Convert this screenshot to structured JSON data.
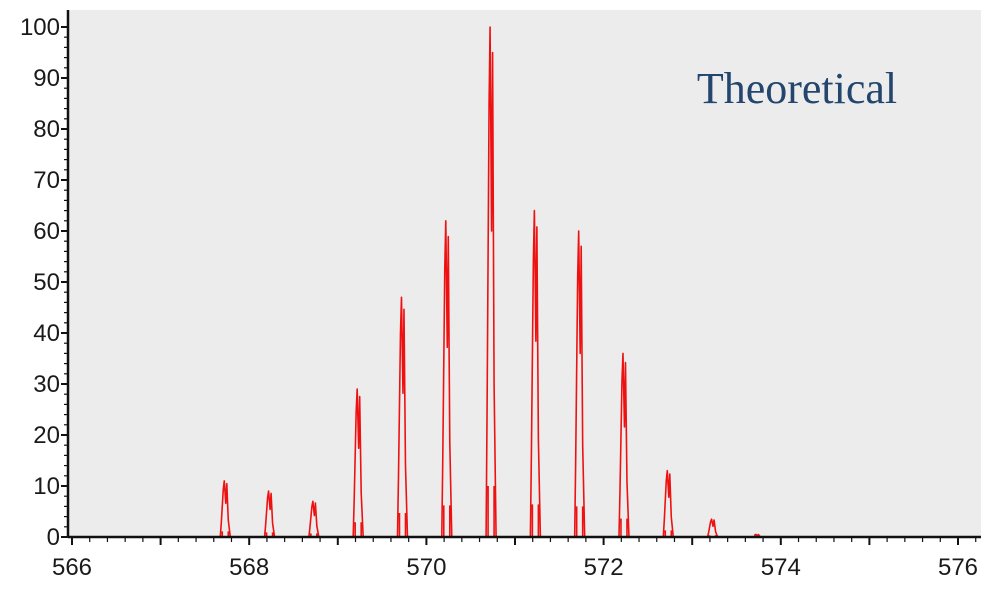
{
  "chart_data": {
    "type": "line",
    "title": "",
    "xlabel": "",
    "ylabel": "",
    "annotation": "Theoretical",
    "xlim": [
      566,
      576.6
    ],
    "ylim": [
      0,
      100
    ],
    "x_ticks": [
      566,
      568,
      570,
      572,
      574,
      576
    ],
    "y_ticks": [
      0,
      10,
      20,
      30,
      40,
      50,
      60,
      70,
      80,
      90,
      100
    ],
    "grid": false,
    "legend": "none",
    "series": [
      {
        "style": "profile",
        "peaks": [
          {
            "x": 567.73,
            "y": 11
          },
          {
            "x": 568.23,
            "y": 9
          },
          {
            "x": 568.73,
            "y": 7
          },
          {
            "x": 569.23,
            "y": 29
          },
          {
            "x": 569.73,
            "y": 47
          },
          {
            "x": 570.23,
            "y": 62
          },
          {
            "x": 570.73,
            "y": 100
          },
          {
            "x": 571.23,
            "y": 64
          },
          {
            "x": 571.73,
            "y": 60
          },
          {
            "x": 572.23,
            "y": 36
          },
          {
            "x": 572.73,
            "y": 13
          },
          {
            "x": 573.23,
            "y": 3.5
          },
          {
            "x": 573.73,
            "y": 0.5
          }
        ]
      }
    ],
    "colors": {
      "plot_background": "#ececec",
      "peak": "#ee1111",
      "axis": "#111111",
      "annotation": "#24466e"
    }
  }
}
